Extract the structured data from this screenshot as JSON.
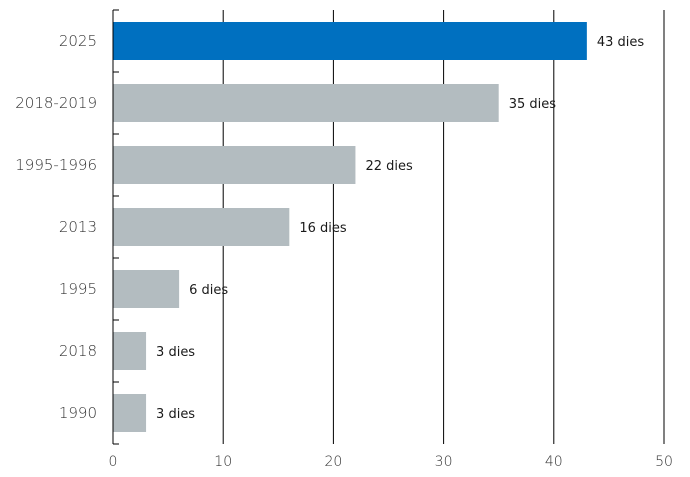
{
  "chart_data": {
    "type": "bar",
    "orientation": "horizontal",
    "title": "",
    "xlabel": "",
    "ylabel": "",
    "xlim": [
      0,
      50
    ],
    "x_ticks": [
      0,
      10,
      20,
      30,
      40,
      50
    ],
    "grid": true,
    "categories": [
      "2025",
      "2018-2019",
      "1995-1996",
      "2013",
      "1995",
      "2018",
      "1990"
    ],
    "values": [
      43,
      35,
      22,
      16,
      6,
      3,
      3
    ],
    "data_labels": [
      "43 dies",
      "35 dies",
      "22 dies",
      "16 dies",
      "6 dies",
      "3 dies",
      "3 dies"
    ],
    "highlight_index": 0,
    "colors": {
      "highlight": "#0070c0",
      "default": "#b3bcc0"
    }
  }
}
